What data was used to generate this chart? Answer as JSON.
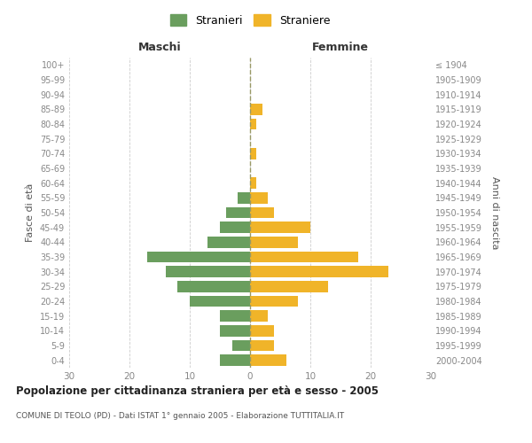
{
  "age_groups": [
    "0-4",
    "5-9",
    "10-14",
    "15-19",
    "20-24",
    "25-29",
    "30-34",
    "35-39",
    "40-44",
    "45-49",
    "50-54",
    "55-59",
    "60-64",
    "65-69",
    "70-74",
    "75-79",
    "80-84",
    "85-89",
    "90-94",
    "95-99",
    "100+"
  ],
  "birth_years": [
    "2000-2004",
    "1995-1999",
    "1990-1994",
    "1985-1989",
    "1980-1984",
    "1975-1979",
    "1970-1974",
    "1965-1969",
    "1960-1964",
    "1955-1959",
    "1950-1954",
    "1945-1949",
    "1940-1944",
    "1935-1939",
    "1930-1934",
    "1925-1929",
    "1920-1924",
    "1915-1919",
    "1910-1914",
    "1905-1909",
    "≤ 1904"
  ],
  "maschi": [
    5,
    3,
    5,
    5,
    10,
    12,
    14,
    17,
    7,
    5,
    4,
    2,
    0,
    0,
    0,
    0,
    0,
    0,
    0,
    0,
    0
  ],
  "femmine": [
    6,
    4,
    4,
    3,
    8,
    13,
    23,
    18,
    8,
    10,
    4,
    3,
    1,
    0,
    1,
    0,
    1,
    2,
    0,
    0,
    0
  ],
  "maschi_color": "#6a9e5e",
  "femmine_color": "#f0b429",
  "title": "Popolazione per cittadinanza straniera per età e sesso - 2005",
  "subtitle": "COMUNE DI TEOLO (PD) - Dati ISTAT 1° gennaio 2005 - Elaborazione TUTTITALIA.IT",
  "ylabel_left": "Fasce di età",
  "ylabel_right": "Anni di nascita",
  "xlabel_left": "Maschi",
  "xlabel_right": "Femmine",
  "legend_maschi": "Stranieri",
  "legend_femmine": "Straniere",
  "xlim": 30,
  "background_color": "#ffffff",
  "grid_color": "#cccccc",
  "axis_label_color": "#555555",
  "tick_color": "#888888"
}
